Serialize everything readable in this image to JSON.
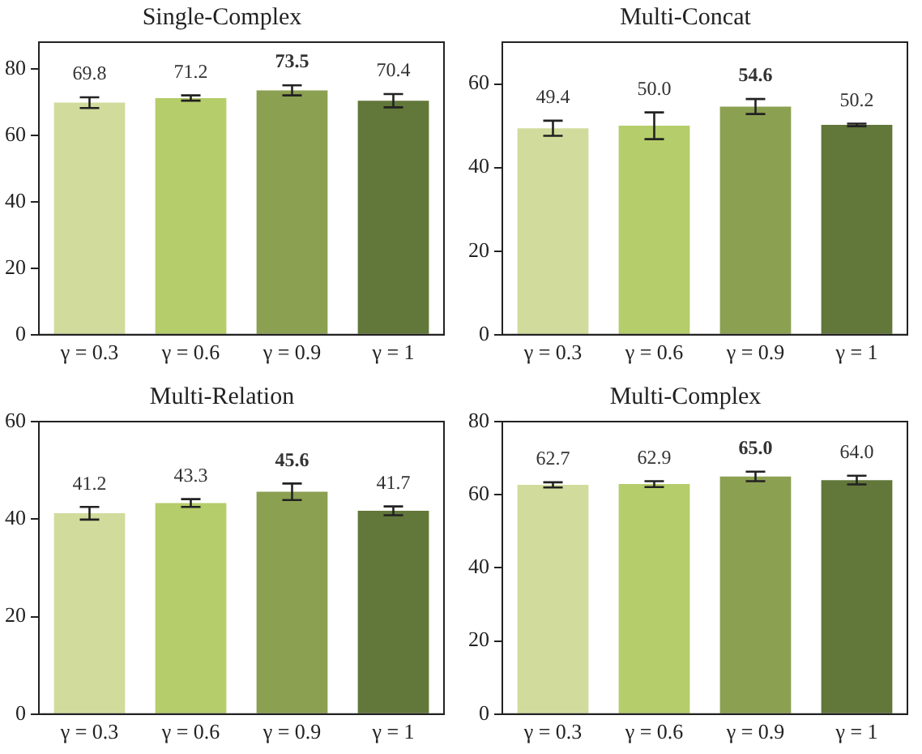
{
  "chart_data": [
    {
      "type": "bar",
      "title": "Single-Complex",
      "categories": [
        "γ = 0.3",
        "γ = 0.6",
        "γ = 0.9",
        "γ = 1"
      ],
      "values": [
        69.8,
        71.2,
        73.5,
        70.4
      ],
      "errors": [
        1.6,
        0.8,
        1.5,
        2.0
      ],
      "value_labels": [
        "69.8",
        "71.2",
        "73.5",
        "70.4"
      ],
      "colors": [
        "#d1dc9c",
        "#b5cd6a",
        "#8ca052",
        "#62773a"
      ],
      "ylim": [
        0,
        88
      ],
      "yticks": [
        0,
        20,
        40,
        60,
        80
      ],
      "grid": false,
      "legend": false
    },
    {
      "type": "bar",
      "title": "Multi-Concat",
      "categories": [
        "γ = 0.3",
        "γ = 0.6",
        "γ = 0.9",
        "γ = 1"
      ],
      "values": [
        49.4,
        50.0,
        54.6,
        50.2
      ],
      "errors": [
        1.8,
        3.2,
        1.8,
        0.3
      ],
      "value_labels": [
        "49.4",
        "50.0",
        "54.6",
        "50.2"
      ],
      "colors": [
        "#d1dc9c",
        "#b5cd6a",
        "#8ca052",
        "#62773a"
      ],
      "ylim": [
        0,
        70
      ],
      "yticks": [
        0,
        20,
        40,
        60
      ],
      "grid": false,
      "legend": false
    },
    {
      "type": "bar",
      "title": "Multi-Relation",
      "categories": [
        "γ = 0.3",
        "γ = 0.6",
        "γ = 0.9",
        "γ = 1"
      ],
      "values": [
        41.2,
        43.3,
        45.6,
        41.7
      ],
      "errors": [
        1.3,
        0.8,
        1.7,
        0.9
      ],
      "value_labels": [
        "41.2",
        "43.3",
        "45.6",
        "41.7"
      ],
      "colors": [
        "#d1dc9c",
        "#b5cd6a",
        "#8ca052",
        "#62773a"
      ],
      "ylim": [
        0,
        60
      ],
      "yticks": [
        0,
        20,
        40,
        60
      ],
      "grid": false,
      "legend": false
    },
    {
      "type": "bar",
      "title": "Multi-Complex",
      "categories": [
        "γ = 0.3",
        "γ = 0.6",
        "γ = 0.9",
        "γ = 1"
      ],
      "values": [
        62.7,
        62.9,
        65.0,
        64.0
      ],
      "errors": [
        0.7,
        0.8,
        1.3,
        1.2
      ],
      "value_labels": [
        "62.7",
        "62.9",
        "65.0",
        "64.0"
      ],
      "colors": [
        "#d1dc9c",
        "#b5cd6a",
        "#8ca052",
        "#62773a"
      ],
      "ylim": [
        0,
        80
      ],
      "yticks": [
        0,
        20,
        40,
        60,
        80
      ],
      "grid": false,
      "legend": false
    }
  ]
}
